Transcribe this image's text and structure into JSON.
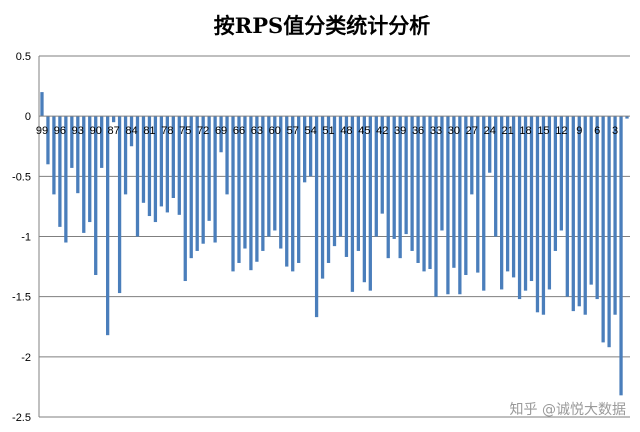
{
  "chart_data": {
    "type": "bar",
    "title": "按RPS值分类统计分析",
    "xlabel": "",
    "ylabel": "",
    "ylim": [
      -2.5,
      0.5
    ],
    "yticks": [
      0.5,
      0,
      -0.5,
      -1,
      -1.5,
      -2,
      -2.5
    ],
    "ytick_labels": [
      "0.5",
      "0",
      "-0.5",
      "-1",
      "-1.5",
      "-2",
      "-2.5"
    ],
    "grid": true,
    "legend": "none",
    "color": "#4a7ebb",
    "categories": [
      99,
      98,
      97,
      96,
      95,
      94,
      93,
      92,
      91,
      90,
      89,
      88,
      87,
      86,
      85,
      84,
      83,
      82,
      81,
      80,
      79,
      78,
      77,
      76,
      75,
      74,
      73,
      72,
      71,
      70,
      69,
      68,
      67,
      66,
      65,
      64,
      63,
      62,
      61,
      60,
      59,
      58,
      57,
      56,
      55,
      54,
      53,
      52,
      51,
      50,
      49,
      48,
      47,
      46,
      45,
      44,
      43,
      42,
      41,
      40,
      39,
      38,
      37,
      36,
      35,
      34,
      33,
      32,
      31,
      30,
      29,
      28,
      27,
      26,
      25,
      24,
      23,
      22,
      21,
      20,
      19,
      18,
      17,
      16,
      15,
      14,
      13,
      12,
      11,
      10,
      9,
      8,
      7,
      6,
      5,
      4,
      3,
      2,
      1
    ],
    "tick_labels": [
      "99",
      "96",
      "93",
      "90",
      "87",
      "84",
      "81",
      "78",
      "75",
      "72",
      "69",
      "66",
      "63",
      "60",
      "57",
      "54",
      "51",
      "48",
      "45",
      "42",
      "39",
      "36",
      "33",
      "30",
      "27",
      "24",
      "21",
      "18",
      "15",
      "12",
      "9",
      "6",
      "3"
    ],
    "values": [
      0.2,
      -0.4,
      -0.65,
      -0.92,
      -1.05,
      -0.43,
      -0.64,
      -0.97,
      -0.88,
      -1.32,
      -0.43,
      -1.82,
      -0.05,
      -1.47,
      -0.65,
      -0.25,
      -1.0,
      -0.72,
      -0.83,
      -0.88,
      -0.75,
      -0.8,
      -0.68,
      -0.82,
      -1.37,
      -1.18,
      -1.12,
      -1.06,
      -0.87,
      -1.05,
      -0.3,
      -0.65,
      -1.29,
      -1.22,
      -1.1,
      -1.28,
      -1.21,
      -1.12,
      -1.0,
      -0.95,
      -1.1,
      -1.25,
      -1.29,
      -1.22,
      -0.55,
      -0.5,
      -1.67,
      -1.35,
      -1.22,
      -1.08,
      -1.0,
      -1.17,
      -1.46,
      -1.12,
      -1.38,
      -1.45,
      -1.0,
      -0.81,
      -1.18,
      -1.02,
      -1.18,
      -0.98,
      -1.12,
      -1.22,
      -1.29,
      -1.27,
      -1.5,
      -0.95,
      -1.48,
      -1.26,
      -1.48,
      -1.32,
      -0.65,
      -1.3,
      -1.45,
      -0.47,
      -1.0,
      -1.44,
      -1.29,
      -1.34,
      -1.52,
      -1.45,
      -1.37,
      -1.63,
      -1.65,
      -1.44,
      -1.12,
      -0.95,
      -1.5,
      -1.62,
      -1.58,
      -1.65,
      -1.4,
      -1.52,
      -1.88,
      -1.92,
      -1.65,
      -2.32,
      -0.02
    ]
  },
  "watermark": "知乎 @诚悦大数据"
}
